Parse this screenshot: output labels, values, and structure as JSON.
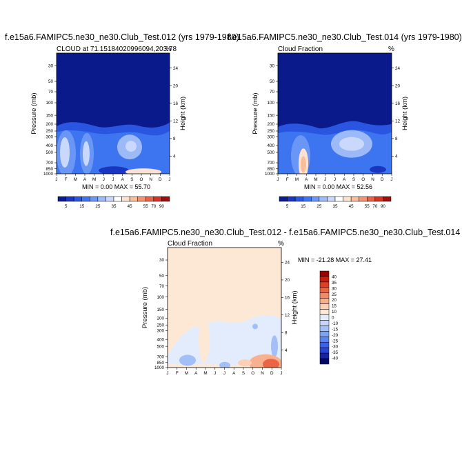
{
  "colors": {
    "scale_abs": [
      "#0b1a8c",
      "#1a35c0",
      "#2a55e0",
      "#3d74f0",
      "#6a97f5",
      "#9dbaf8",
      "#c9d8fb",
      "#ffffff",
      "#fde3cf",
      "#f9bd9a",
      "#f39270",
      "#e8624a",
      "#d43424",
      "#9e1010"
    ],
    "scale_diff": [
      "#000a6a",
      "#1423a8",
      "#2845d8",
      "#3a62ee",
      "#5a84f2",
      "#7da3f5",
      "#a2bff8",
      "#c6d7fb",
      "#e3ecfd",
      "#fde8d5",
      "#fbd0b4",
      "#f8b08e",
      "#f38a66",
      "#ec6444",
      "#e03e25",
      "#c81e10",
      "#9c0000"
    ],
    "panel_top_fill": "#0a1a8a",
    "panel_diff_fill": "#fde8d5"
  },
  "panels": [
    {
      "id": "p1",
      "title": "f.e15a6.FAMIPC5.ne30_ne30.Club_Test.012 (yrs 1979-1980)",
      "left_label": "CLOUD at 71.15184020996094,203.78",
      "right_label": "%",
      "min_max": "MIN =   0.00 MAX =  55.70"
    },
    {
      "id": "p2",
      "title": "f.e15a6.FAMIPC5.ne30_ne30.Club_Test.014 (yrs 1979-1980)",
      "left_label": "Cloud Fraction",
      "right_label": "%",
      "min_max": "MIN =   0.00 MAX =  52.56"
    },
    {
      "id": "p3",
      "title": "f.e15a6.FAMIPC5.ne30_ne30.Club_Test.012 - f.e15a6.FAMIPC5.ne30_ne30.Club_Test.014",
      "left_label": "Cloud Fraction",
      "right_label": "%",
      "min_max": "MIN = -21.28 MAX =  27.41"
    }
  ],
  "chart_data": {
    "type": "heatmap",
    "x_tick_labels": [
      "J",
      "F",
      "M",
      "A",
      "M",
      "J",
      "J",
      "A",
      "S",
      "O",
      "N",
      "D",
      "J"
    ],
    "ylabel": "Pressure (mb)",
    "pressure_ticks": [
      30,
      50,
      70,
      100,
      150,
      200,
      250,
      300,
      400,
      500,
      700,
      850,
      1000
    ],
    "ylim_mb": [
      20,
      1000
    ],
    "y2label": "Height (km)",
    "height_ticks": [
      4,
      8,
      12,
      16,
      20,
      24
    ],
    "colorbar_abs_labels": [
      "5",
      "15",
      "25",
      "35",
      "45",
      "55",
      "70",
      "90"
    ],
    "colorbar_diff_labels": [
      "40",
      "35",
      "30",
      "25",
      "20",
      "15",
      "10",
      "0",
      "-10",
      "-15",
      "-20",
      "-25",
      "-30",
      "-35",
      "-40"
    ]
  }
}
